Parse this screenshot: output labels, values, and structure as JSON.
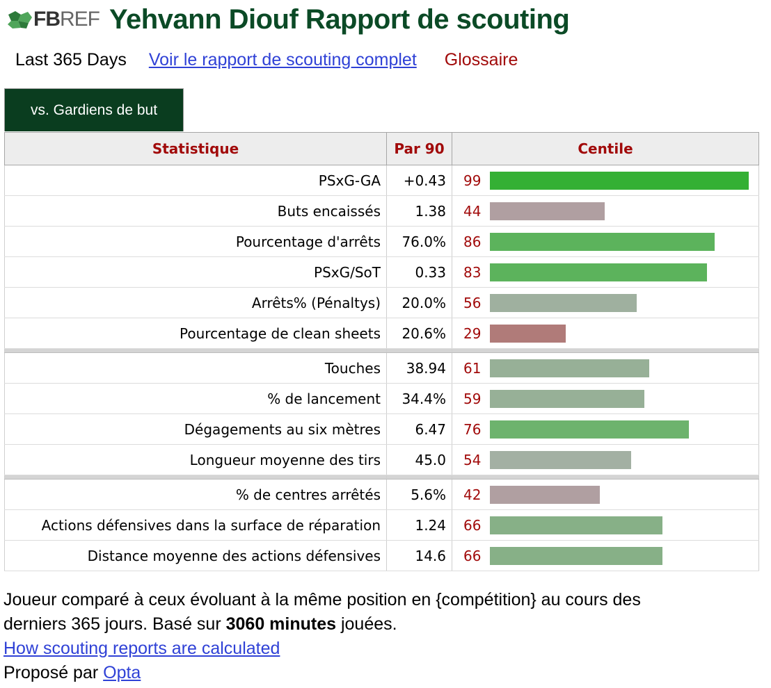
{
  "header": {
    "logo_fb": "FB",
    "logo_ref": "REF",
    "title": "Yehvann Diouf Rapport de scouting"
  },
  "subnav": {
    "period": "Last 365 Days",
    "full_report_link": "Voir le rapport de scouting complet",
    "glossary_link": "Glossaire"
  },
  "tabs": [
    {
      "label": "vs. Gardiens de but",
      "active": true
    }
  ],
  "table": {
    "columns": [
      "Statistique",
      "Par 90",
      "Centile"
    ],
    "groups": [
      [
        {
          "stat": "PSxG-GA",
          "per90": "+0.43",
          "percentile": 99,
          "color": "#34b034"
        },
        {
          "stat": "Buts encaissés",
          "per90": "1.38",
          "percentile": 44,
          "color": "#b09fa1"
        },
        {
          "stat": "Pourcentage d'arrêts",
          "per90": "76.0%",
          "percentile": 86,
          "color": "#5cb35c"
        },
        {
          "stat": "PSxG/SoT",
          "per90": "0.33",
          "percentile": 83,
          "color": "#5cb35c"
        },
        {
          "stat": "Arrêts% (Pénaltys)",
          "per90": "20.0%",
          "percentile": 56,
          "color": "#9fb09f"
        },
        {
          "stat": "Pourcentage de clean sheets",
          "per90": "20.6%",
          "percentile": 29,
          "color": "#b07b79"
        }
      ],
      [
        {
          "stat": "Touches",
          "per90": "38.94",
          "percentile": 61,
          "color": "#97b097"
        },
        {
          "stat": "% de lancement",
          "per90": "34.4%",
          "percentile": 59,
          "color": "#97b097"
        },
        {
          "stat": "Dégagements au six mètres",
          "per90": "6.47",
          "percentile": 76,
          "color": "#6db36d"
        },
        {
          "stat": "Longueur moyenne des tirs",
          "per90": "45.0",
          "percentile": 54,
          "color": "#a3b0a3"
        }
      ],
      [
        {
          "stat": "% de centres arrêtés",
          "per90": "5.6%",
          "percentile": 42,
          "color": "#b09fa1"
        },
        {
          "stat": "Actions défensives dans la surface de réparation",
          "per90": "1.24",
          "percentile": 66,
          "color": "#87b087"
        },
        {
          "stat": "Distance moyenne des actions défensives",
          "per90": "14.6",
          "percentile": 66,
          "color": "#87b087"
        }
      ]
    ]
  },
  "footer": {
    "line1_a": "Joueur comparé à ceux évoluant à la même position en {compétition} au cours des derniers 365 jours. Basé sur ",
    "minutes_bold": "3060 minutes",
    "line1_b": " jouées.",
    "how_link": "How scouting reports are calculated",
    "provided_by": "Proposé par ",
    "opta_link": "Opta"
  },
  "colors": {
    "title_green": "#0b4a26",
    "tab_green": "#0a3d1f",
    "accent_red": "#a10a0a",
    "link_blue": "#2f41d6"
  }
}
